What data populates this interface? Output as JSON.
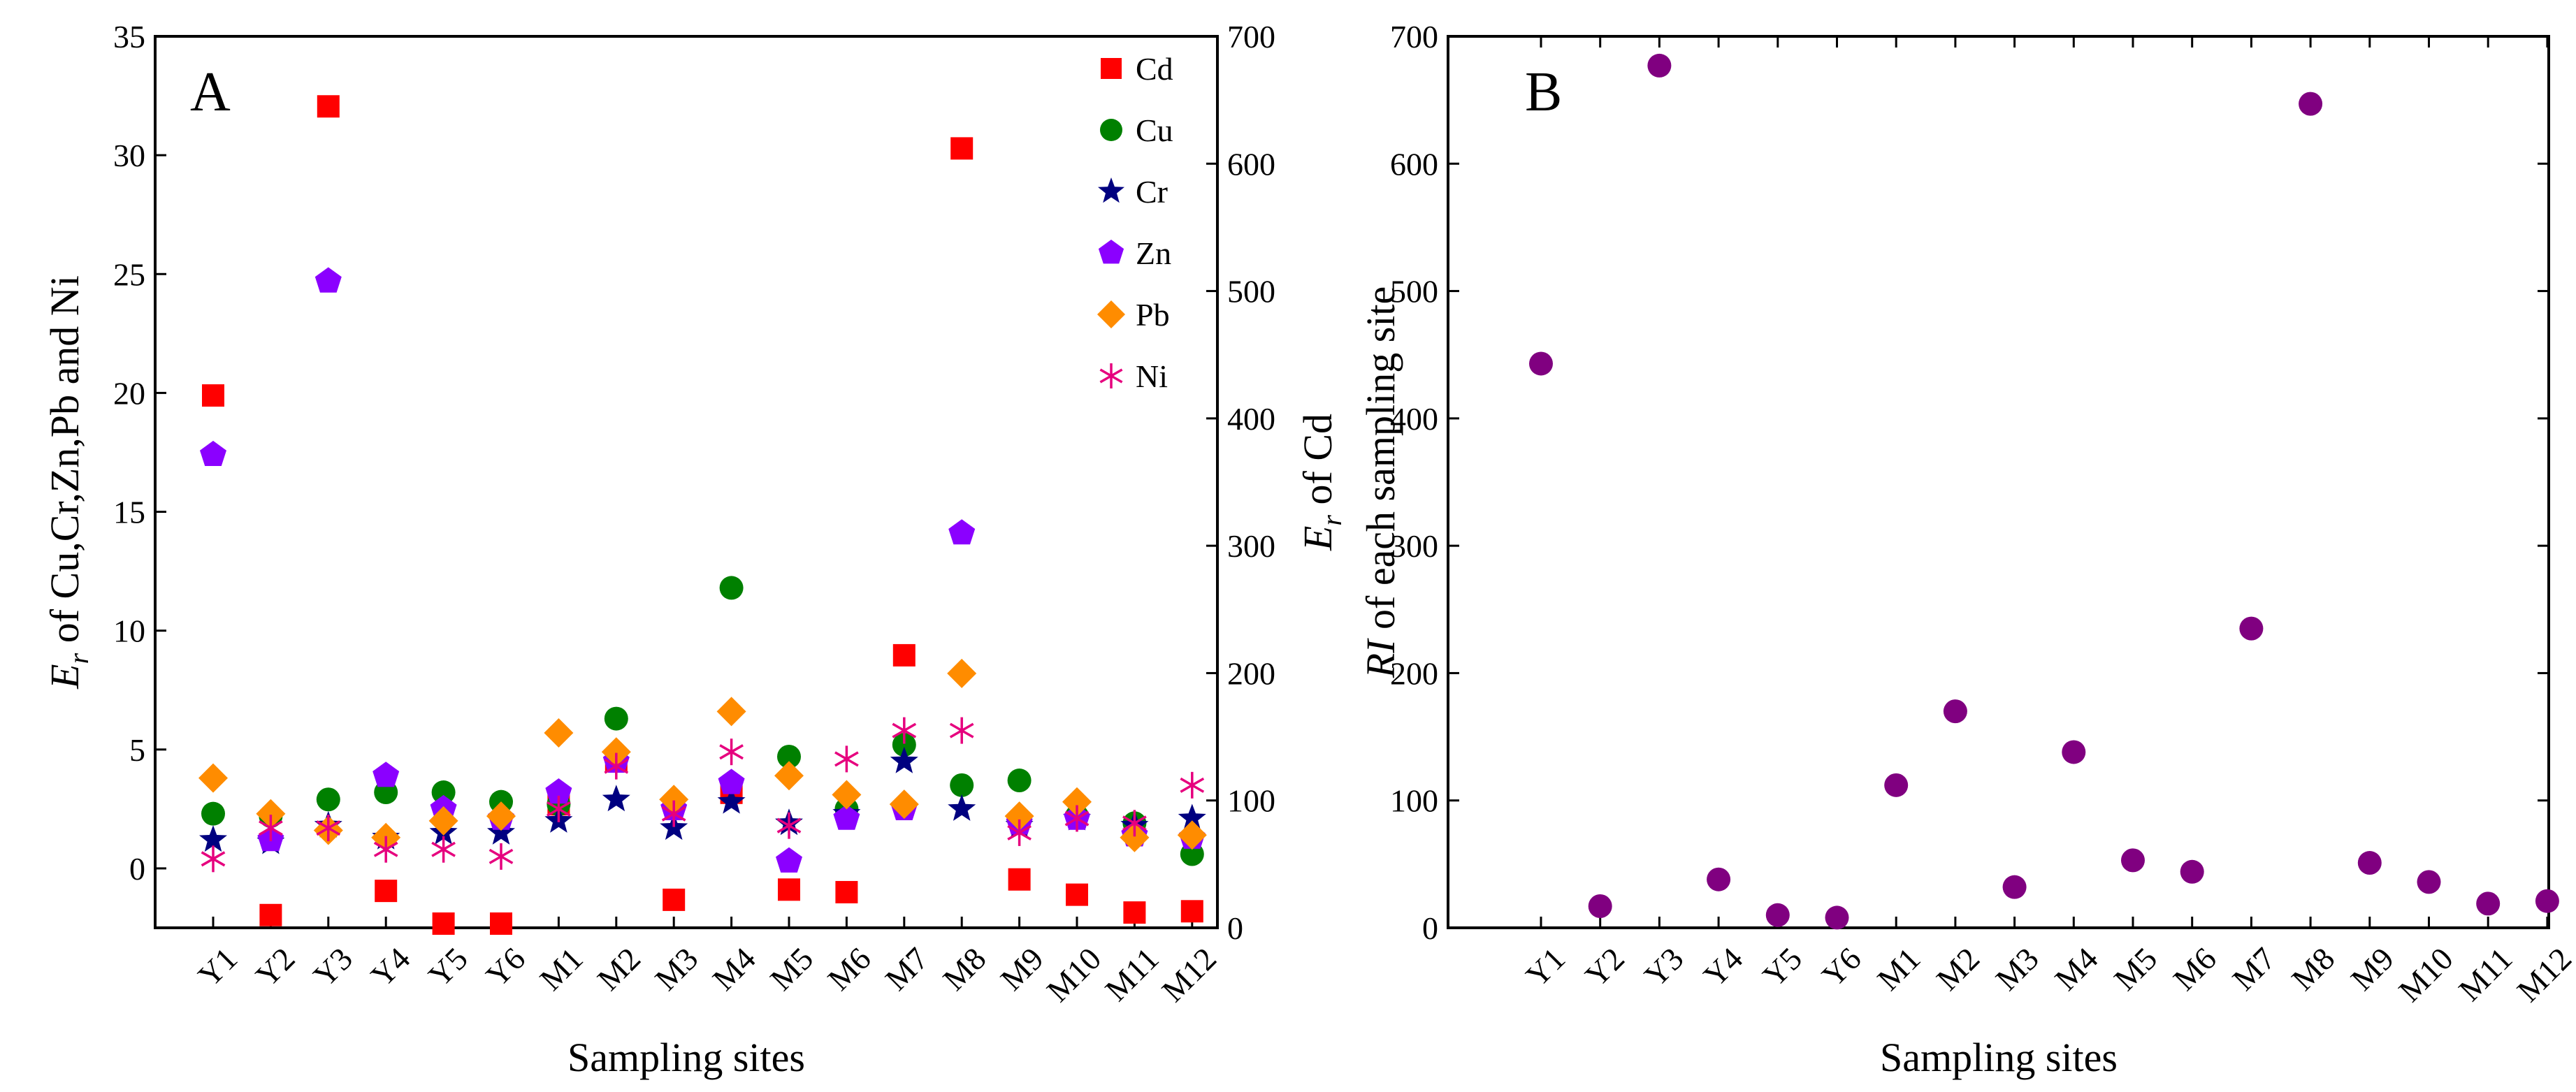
{
  "chart_data": [
    {
      "panel_label": "A",
      "type": "scatter",
      "categories": [
        "Y1",
        "Y2",
        "Y3",
        "Y4",
        "Y5",
        "Y6",
        "M1",
        "M2",
        "M3",
        "M4",
        "M5",
        "M6",
        "M7",
        "M8",
        "M9",
        "M10",
        "M11",
        "M12"
      ],
      "xlabel": "Sampling sites",
      "ylabel_left": "E_r of Cu,Cr,Zn,Pb and Ni",
      "ylabel_left_parts": {
        "sym": "E",
        "sub": "r",
        "rest": " of Cu,Cr,Zn,Pb and Ni"
      },
      "ylabel_right": "E_r of Cd",
      "ylabel_right_parts": {
        "sym": "E",
        "sub": "r",
        "rest": " of Cd"
      },
      "ylim_left": [
        -2.5,
        35
      ],
      "yticks_left": [
        0,
        5,
        10,
        15,
        20,
        25,
        30,
        35
      ],
      "ylim_right": [
        0,
        700
      ],
      "yticks_right": [
        0,
        100,
        200,
        300,
        400,
        500,
        600,
        700
      ],
      "series": [
        {
          "name": "Cd",
          "axis": "right",
          "marker": "square",
          "color": "#ff0000",
          "values": [
            418,
            10,
            645,
            29,
            0,
            0,
            97,
            131,
            22,
            106,
            30,
            28,
            214,
            612,
            38,
            26,
            12,
            13
          ]
        },
        {
          "name": "Cu",
          "axis": "left",
          "marker": "circle",
          "color": "#008000",
          "values": [
            2.3,
            2.2,
            2.9,
            3.2,
            3.2,
            2.8,
            2.7,
            6.3,
            2.6,
            11.8,
            4.7,
            2.5,
            5.2,
            3.5,
            3.7,
            2.2,
            1.9,
            0.6
          ]
        },
        {
          "name": "Cr",
          "axis": "left",
          "marker": "star",
          "color": "#000080",
          "values": [
            1.2,
            1.1,
            1.8,
            1.3,
            1.5,
            1.5,
            2.0,
            2.9,
            1.7,
            2.8,
            1.9,
            2.3,
            4.5,
            2.5,
            1.8,
            2.1,
            1.8,
            2.1
          ]
        },
        {
          "name": "Zn",
          "axis": "left",
          "marker": "pentagon",
          "color": "#8b00ff",
          "values": [
            17.4,
            1.2,
            24.7,
            3.9,
            2.5,
            2.1,
            3.2,
            4.5,
            2.5,
            3.6,
            0.3,
            2.1,
            2.5,
            14.1,
            1.9,
            2.1,
            1.4,
            1.3
          ]
        },
        {
          "name": "Pb",
          "axis": "left",
          "marker": "diamond",
          "color": "#ff8c00",
          "values": [
            3.8,
            2.3,
            1.6,
            1.3,
            2.0,
            2.2,
            5.7,
            4.9,
            2.9,
            6.6,
            3.9,
            3.1,
            2.7,
            8.2,
            2.2,
            2.8,
            1.3,
            1.4
          ]
        },
        {
          "name": "Ni",
          "axis": "left",
          "marker": "asterisk",
          "color": "#e6007e",
          "values": [
            0.4,
            1.7,
            1.7,
            0.8,
            0.8,
            0.5,
            2.5,
            4.3,
            2.3,
            4.9,
            1.8,
            4.6,
            5.8,
            5.8,
            1.5,
            2.1,
            1.9,
            3.5
          ]
        }
      ],
      "legend": [
        "Cd",
        "Cu",
        "Cr",
        "Zn",
        "Pb",
        "Ni"
      ],
      "legend_position": "top-right"
    },
    {
      "panel_label": "B",
      "type": "scatter",
      "categories": [
        "Y1",
        "Y2",
        "Y3",
        "Y4",
        "Y5",
        "Y6",
        "M1",
        "M2",
        "M3",
        "M4",
        "M5",
        "M6",
        "M7",
        "M8",
        "M9",
        "M10",
        "M11",
        "M12"
      ],
      "xlabel": "Sampling sites",
      "ylabel": "RI of each sampling site",
      "ylabel_parts": {
        "sym": "RI",
        "rest": " of each sampling site"
      },
      "ylim": [
        0,
        700
      ],
      "yticks": [
        0,
        100,
        200,
        300,
        400,
        500,
        600,
        700
      ],
      "series": [
        {
          "name": "RI",
          "marker": "circle",
          "color": "#800080",
          "values": [
            443,
            17,
            677,
            38,
            10,
            8,
            112,
            170,
            32,
            138,
            53,
            44,
            235,
            647,
            51,
            36,
            19,
            21
          ]
        }
      ]
    }
  ]
}
